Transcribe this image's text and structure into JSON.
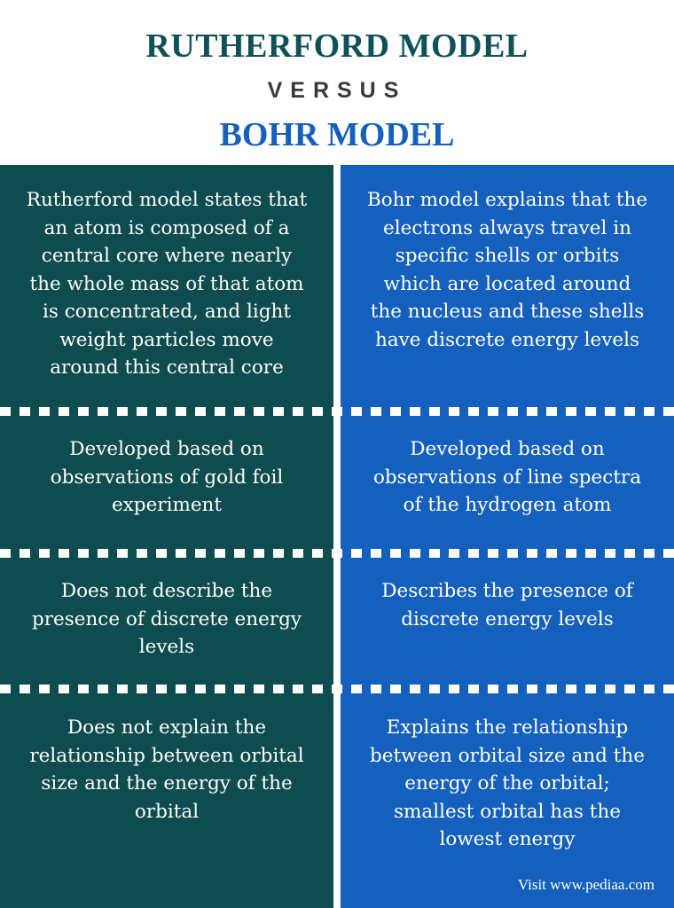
{
  "header": {
    "title1": "RUTHERFORD MODEL",
    "versus": "VERSUS",
    "title2": "BOHR MODEL"
  },
  "rows": [
    {
      "left": "Rutherford model states that an atom is composed of a central core where nearly the whole mass of that atom is concentrated, and light weight particles move around this central core",
      "right": "Bohr model explains that the electrons always travel in specific shells or orbits which are located around the nucleus and these shells have discrete energy levels"
    },
    {
      "left": "Developed based on observations of gold foil experiment",
      "right": "Developed based on observations of line spectra of the hydrogen atom"
    },
    {
      "left": "Does not describe the presence of discrete energy levels",
      "right": "Describes the presence of discrete energy levels"
    },
    {
      "left": "Does not explain the relationship between orbital size and the energy of the orbital",
      "right": "Explains the relationship between orbital size and the energy of the orbital; smallest orbital has the lowest energy"
    }
  ],
  "footer": "Visit www.pediaa.com",
  "colors": {
    "title1": "#0e5157",
    "title2": "#1560bd",
    "left_column": "#0e4c50",
    "right_column": "#1560bd"
  }
}
